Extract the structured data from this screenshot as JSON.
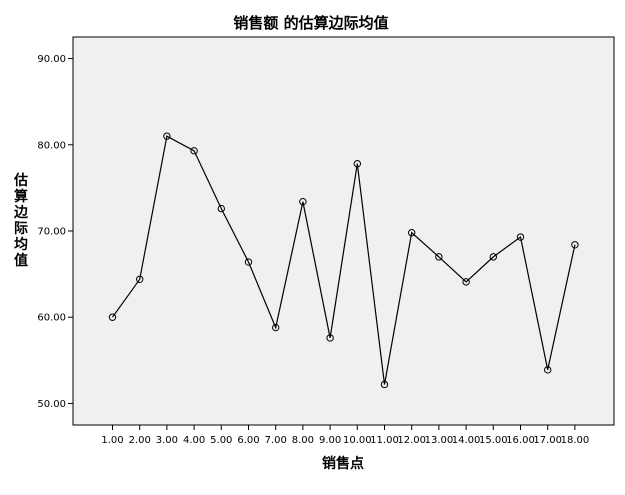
{
  "chart_data": {
    "type": "line",
    "title": "销售额 的估算边际均值",
    "xlabel": "销售点",
    "ylabel": "估算边际均值",
    "categories": [
      "1.00",
      "2.00",
      "3.00",
      "4.00",
      "5.00",
      "6.00",
      "7.00",
      "8.00",
      "9.00",
      "10.00",
      "11.00",
      "12.00",
      "13.00",
      "14.00",
      "15.00",
      "16.00",
      "17.00",
      "18.00"
    ],
    "values": [
      60.0,
      64.4,
      81.0,
      79.3,
      72.6,
      66.4,
      58.8,
      73.4,
      57.6,
      77.8,
      52.2,
      69.8,
      67.0,
      64.1,
      67.0,
      69.3,
      53.9,
      68.4
    ],
    "ylim": [
      47.5,
      92.5
    ],
    "yticks": [
      "50.00",
      "60.00",
      "70.00",
      "80.00",
      "90.00"
    ],
    "grid": false,
    "legend": "none",
    "colors": {
      "plot_background": "#f0f0f0",
      "line": "#000000",
      "axis": "#000000"
    }
  }
}
